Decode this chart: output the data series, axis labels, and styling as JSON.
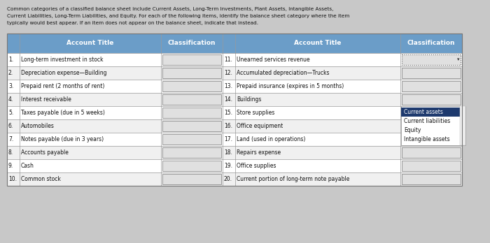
{
  "header_text_line1": "Common categories of a classified balance sheet include Current Assets, Long-Term Investments, Plant Assets, Intangible Assets,",
  "header_text_line2": "Current Liabilities, Long-Term Liabilities, and Equity. For each of the following items, identify the balance sheet category where the item",
  "header_text_line3": "typically would best appear. If an item does not appear on the balance sheet, indicate that instead.",
  "left_items": [
    [
      "1.",
      "Long-term investment in stock"
    ],
    [
      "2.",
      "Depreciation expense—Building"
    ],
    [
      "3.",
      "Prepaid rent (2 months of rent)"
    ],
    [
      "4.",
      "Interest receivable"
    ],
    [
      "5.",
      "Taxes payable (due in 5 weeks)"
    ],
    [
      "6.",
      "Automobiles"
    ],
    [
      "7.",
      "Notes payable (due in 3 years)"
    ],
    [
      "8.",
      "Accounts payable"
    ],
    [
      "9.",
      "Cash"
    ],
    [
      "10.",
      "Common stock"
    ]
  ],
  "right_items": [
    [
      "11.",
      "Unearned services revenue"
    ],
    [
      "12.",
      "Accumulated depreciation—Trucks"
    ],
    [
      "13.",
      "Prepaid insurance (expires in 5 months)"
    ],
    [
      "14.",
      "Buildings"
    ],
    [
      "15.",
      "Store supplies"
    ],
    [
      "16.",
      "Office equipment"
    ],
    [
      "17.",
      "Land (used in operations)"
    ],
    [
      "18.",
      "Repairs expense"
    ],
    [
      "19.",
      "Office supplies"
    ],
    [
      "20.",
      "Current portion of long-term note payable"
    ]
  ],
  "dropdown_options": [
    "Current assets",
    "Current liabilities",
    "Equity",
    "Intangible assets"
  ],
  "dropdown_selected": "Current assets",
  "header_bg": "#6b9dc8",
  "header_text_color": "#ffffff",
  "outer_bg": "#c8c8c8",
  "text_color": "#111111",
  "border_color": "#999999",
  "table_bg": "#e8e8e8",
  "input_bg": "#e0e0e0",
  "dropdown_bg": "#ffffff",
  "dropdown_selected_bg": "#1e3a6e",
  "dropdown_selected_color": "#ffffff",
  "dropdown_option_color": "#111111"
}
